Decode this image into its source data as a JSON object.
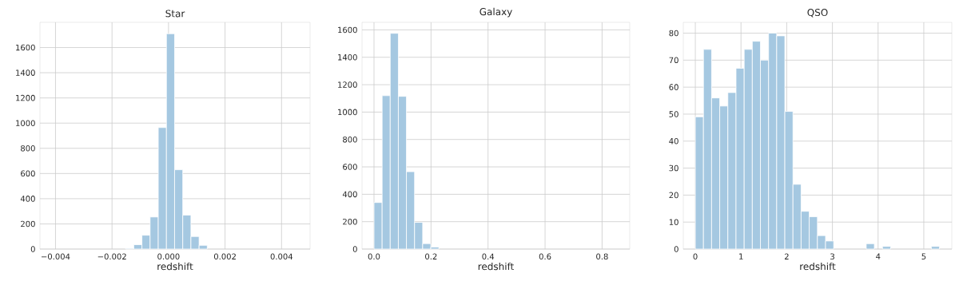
{
  "chart_data": [
    {
      "type": "histogram",
      "title": "Star",
      "xlabel": "redshift",
      "color": "#a5c8e1",
      "grid": true,
      "bins": [
        -0.00412,
        -0.003831,
        -0.003542,
        -0.003253,
        -0.002964,
        -0.002675,
        -0.002386,
        -0.002097,
        -0.001808,
        -0.001519,
        -0.00123,
        -0.000941,
        -0.000652,
        -0.000363,
        -7.4e-05,
        0.000215,
        0.000504,
        0.000793,
        0.001082,
        0.001371,
        0.00166,
        0.001949,
        0.002238,
        0.002527,
        0.002816,
        0.003105,
        0.003394,
        0.003683,
        0.003972,
        0.004261,
        0.00455
      ],
      "values": [
        0,
        0,
        0,
        0,
        0,
        0,
        0,
        0,
        0,
        5,
        35,
        110,
        255,
        965,
        1710,
        630,
        270,
        100,
        30,
        0,
        0,
        0,
        0,
        0,
        0,
        0,
        0,
        0,
        0,
        0
      ],
      "xlim": [
        -0.00455,
        0.00501
      ],
      "ylim": [
        0,
        1800
      ],
      "xticks": [
        {
          "value": -0.004,
          "label": "−0.004"
        },
        {
          "value": -0.002,
          "label": "−0.002"
        },
        {
          "value": 0,
          "label": "0.000"
        },
        {
          "value": 0.002,
          "label": "0.002"
        },
        {
          "value": 0.004,
          "label": "0.004"
        }
      ],
      "yticks": [
        0,
        200,
        400,
        600,
        800,
        1000,
        1200,
        1400,
        1600
      ]
    },
    {
      "type": "histogram",
      "title": "Galaxy",
      "xlabel": "redshift",
      "color": "#a5c8e1",
      "grid": true,
      "bins": [
        0,
        0.0285,
        0.0569,
        0.0854,
        0.1138,
        0.1423,
        0.1707,
        0.1992,
        0.2276,
        0.2561,
        0.2845,
        0.313,
        0.3414,
        0.3699,
        0.3983,
        0.4268,
        0.4552,
        0.4837,
        0.5121,
        0.5406,
        0.569,
        0.5975,
        0.6259,
        0.6544,
        0.6828,
        0.7113,
        0.7397,
        0.7682,
        0.7966,
        0.8251,
        0.8535
      ],
      "values": [
        340,
        1120,
        1575,
        1115,
        565,
        195,
        40,
        15,
        0,
        0,
        0,
        0,
        0,
        0,
        0,
        0,
        0,
        0,
        0,
        0,
        0,
        0,
        0,
        0,
        0,
        0,
        0,
        0,
        0,
        0
      ],
      "xlim": [
        -0.042,
        0.897
      ],
      "ylim": [
        0,
        1655
      ],
      "xticks": [
        {
          "value": 0,
          "label": "0.0"
        },
        {
          "value": 0.2,
          "label": "0.2"
        },
        {
          "value": 0.4,
          "label": "0.4"
        },
        {
          "value": 0.6,
          "label": "0.6"
        },
        {
          "value": 0.8,
          "label": "0.8"
        }
      ],
      "yticks": [
        0,
        200,
        400,
        600,
        800,
        1000,
        1200,
        1400,
        1600
      ]
    },
    {
      "type": "histogram",
      "title": "QSO",
      "xlabel": "redshift",
      "color": "#a5c8e1",
      "grid": true,
      "bins": [
        0,
        0.178,
        0.356,
        0.534,
        0.712,
        0.891,
        1.069,
        1.247,
        1.425,
        1.603,
        1.781,
        1.959,
        2.137,
        2.315,
        2.493,
        2.672,
        2.85,
        3.028,
        3.206,
        3.384,
        3.562,
        3.74,
        3.918,
        4.096,
        4.274,
        4.453,
        4.631,
        4.809,
        4.987,
        5.165,
        5.343
      ],
      "values": [
        49,
        74,
        56,
        53,
        58,
        67,
        74,
        77,
        70,
        80,
        79,
        51,
        24,
        14,
        12,
        5,
        3,
        0,
        0,
        0,
        0,
        2,
        0,
        1,
        0,
        0,
        0,
        0,
        0,
        1
      ],
      "xlim": [
        -0.263,
        5.613
      ],
      "ylim": [
        0,
        84
      ],
      "xticks": [
        0,
        1,
        2,
        3,
        4,
        5
      ],
      "yticks": [
        0,
        10,
        20,
        30,
        40,
        50,
        60,
        70,
        80
      ]
    }
  ]
}
